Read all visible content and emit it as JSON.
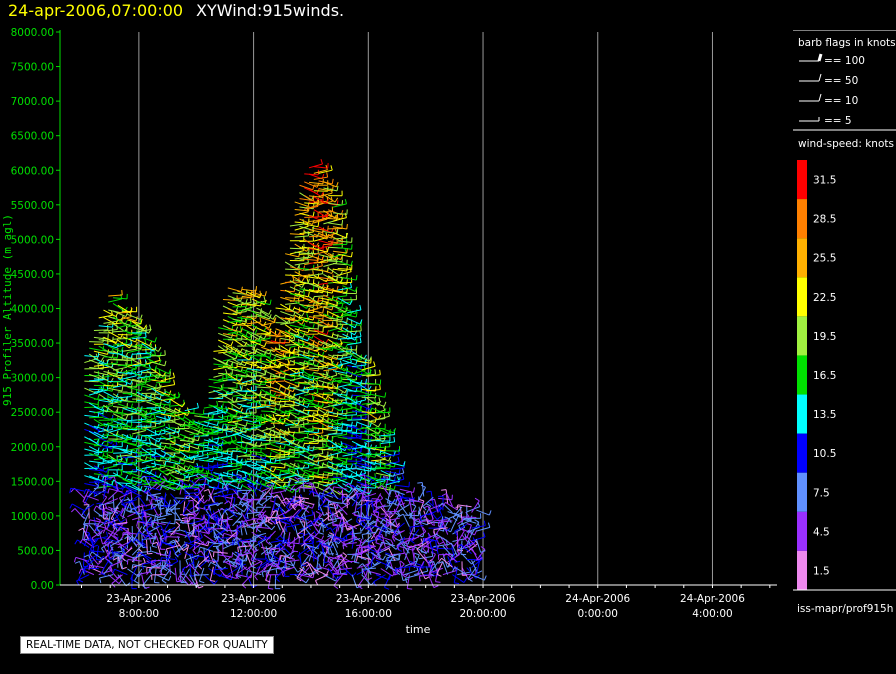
{
  "header": {
    "date_time": "24-apr-2006,07:00:00",
    "product": "XYWind:915winds."
  },
  "legend": {
    "barb_title": "barb flags in knots",
    "barbs": [
      {
        "label": "== 100"
      },
      {
        "label": "== 50"
      },
      {
        "label": "== 10"
      },
      {
        "label": "== 5"
      }
    ],
    "speed_title": "wind-speed: knots",
    "speed_bins": [
      {
        "label": "31.5",
        "color": "#ff0000"
      },
      {
        "label": "28.5",
        "color": "#ff8000"
      },
      {
        "label": "25.5",
        "color": "#ffb000"
      },
      {
        "label": "22.5",
        "color": "#ffff00"
      },
      {
        "label": "19.5",
        "color": "#a0f040"
      },
      {
        "label": "16.5",
        "color": "#00e000"
      },
      {
        "label": "13.5",
        "color": "#00ffff"
      },
      {
        "label": "10.5",
        "color": "#0000ff"
      },
      {
        "label": "7.5",
        "color": "#6090ff"
      },
      {
        "label": "4.5",
        "color": "#9a30ff"
      },
      {
        "label": "1.5",
        "color": "#ee88ee"
      }
    ]
  },
  "footer": {
    "notice": "REAL-TIME DATA, NOT CHECKED FOR QUALITY",
    "source": "iss-mapr/prof915h"
  },
  "chart_data": {
    "type": "scatter",
    "ylabel": "915 Profiler Altitude (m agl)",
    "xlabel": "time",
    "ylim": [
      0,
      8000
    ],
    "yticks": [
      "0.00",
      "500.00",
      "1000.00",
      "1500.00",
      "2000.00",
      "2500.00",
      "3000.00",
      "3500.00",
      "4000.00",
      "4500.00",
      "5000.00",
      "5500.00",
      "6000.00",
      "6500.00",
      "7000.00",
      "7500.00",
      "8000.00"
    ],
    "xlim_hours": [
      5.25,
      30.25
    ],
    "xticks": [
      {
        "date": "23-Apr-2006",
        "time": "8:00:00",
        "hour": 8
      },
      {
        "date": "23-Apr-2006",
        "time": "12:00:00",
        "hour": 12
      },
      {
        "date": "23-Apr-2006",
        "time": "16:00:00",
        "hour": 16
      },
      {
        "date": "23-Apr-2006",
        "time": "20:00:00",
        "hour": 20
      },
      {
        "date": "24-Apr-2006",
        "time": "0:00:00",
        "hour": 24
      },
      {
        "date": "24-Apr-2006",
        "time": "4:00:00",
        "hour": 28
      }
    ],
    "axis_color": "#00e000",
    "grid": "vertical",
    "profiles": [
      {
        "hour": 6.1,
        "top": 3400,
        "peak_speed": 16
      },
      {
        "hour": 7.0,
        "top": 4300,
        "peak_speed": 20
      },
      {
        "hour": 8.2,
        "top": 3600,
        "peak_speed": 18
      },
      {
        "hour": 9.2,
        "top": 2600,
        "peak_speed": 20
      },
      {
        "hour": 10.2,
        "top": 2500,
        "peak_speed": 14
      },
      {
        "hour": 11.0,
        "top": 4300,
        "peak_speed": 21
      },
      {
        "hour": 12.0,
        "top": 4300,
        "peak_speed": 20
      },
      {
        "hour": 12.6,
        "top": 3600,
        "peak_speed": 25
      },
      {
        "hour": 13.5,
        "top": 5800,
        "peak_speed": 22
      },
      {
        "hour": 14.1,
        "top": 6150,
        "peak_speed": 30
      },
      {
        "hour": 14.8,
        "top": 5500,
        "peak_speed": 20
      },
      {
        "hour": 15.4,
        "top": 3500,
        "peak_speed": 14
      },
      {
        "hour": 16.0,
        "top": 3000,
        "peak_speed": 22
      },
      {
        "hour": 17.0,
        "top": 1400,
        "peak_speed": 8
      },
      {
        "hour": 18.0,
        "top": 1300,
        "peak_speed": 8
      },
      {
        "hour": 19.0,
        "top": 1200,
        "peak_speed": 7
      },
      {
        "hour": 19.8,
        "top": 1150,
        "peak_speed": 10
      }
    ]
  }
}
